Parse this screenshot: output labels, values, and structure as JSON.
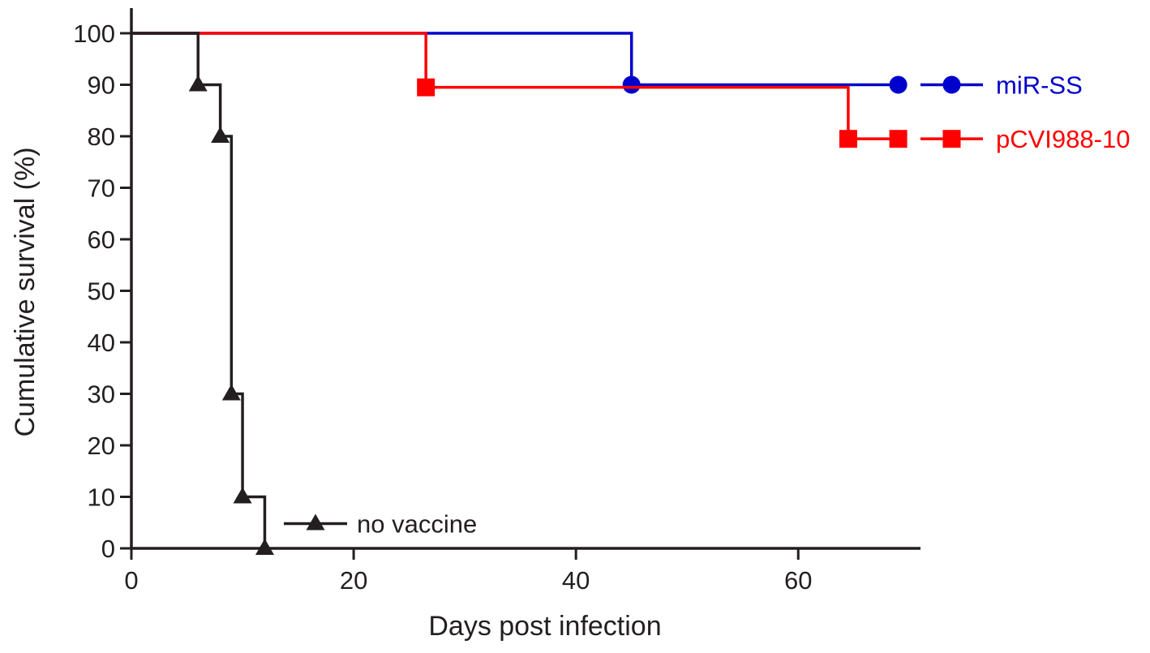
{
  "chart_data": {
    "type": "line",
    "subtype": "kaplan-meier-step",
    "title": "",
    "xlabel": "Days post infection",
    "ylabel": "Cumulative survival (%)",
    "xlim": [
      0,
      71
    ],
    "ylim": [
      0,
      100
    ],
    "xticks": [
      0,
      20,
      40,
      60
    ],
    "yticks": [
      0,
      10,
      20,
      30,
      40,
      50,
      60,
      70,
      80,
      90,
      100
    ],
    "grid": false,
    "legend": "inline labels at series ends",
    "series": [
      {
        "name": "miR-SS",
        "color": "#0000cc",
        "marker": "circle",
        "steps": [
          [
            0,
            100
          ],
          [
            45,
            90
          ],
          [
            69,
            90
          ]
        ],
        "markers": [
          [
            45,
            90
          ],
          [
            69,
            90
          ]
        ]
      },
      {
        "name": "pCVI988-10",
        "color": "#ff0000",
        "marker": "square",
        "steps": [
          [
            0,
            100
          ],
          [
            26.5,
            89.5
          ],
          [
            64.5,
            79.5
          ],
          [
            69,
            79.5
          ]
        ],
        "markers": [
          [
            26.5,
            89.5
          ],
          [
            64.5,
            79.5
          ],
          [
            69,
            79.5
          ]
        ]
      },
      {
        "name": "no vaccine",
        "color": "#231f20",
        "marker": "triangle",
        "steps": [
          [
            0,
            100
          ],
          [
            6,
            90
          ],
          [
            8,
            80
          ],
          [
            9,
            30
          ],
          [
            10,
            10
          ],
          [
            12,
            0
          ]
        ],
        "markers": [
          [
            6,
            90
          ],
          [
            8,
            80
          ],
          [
            9,
            30
          ],
          [
            10,
            10
          ],
          [
            12,
            0
          ]
        ]
      }
    ]
  }
}
